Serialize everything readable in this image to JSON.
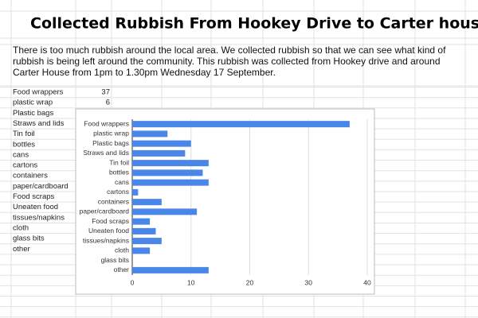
{
  "header": {
    "title": "Collected Rubbish From Hookey Drive to Carter house",
    "description": "There is too much rubbish around the local area. We collected rubbish so that we can see what kind of rubbish is being left around the community. This rubbish was collected from Hookey drive and around Carter House from 1pm to 1.30pm Wednesday 17 September."
  },
  "table": {
    "rows": [
      [
        "Food wrappers",
        37
      ],
      [
        "plastic wrap",
        6
      ],
      [
        "Plastic bags"
      ],
      [
        "Straws and lids"
      ],
      [
        "Tin foil"
      ],
      [
        "bottles"
      ],
      [
        "cans"
      ],
      [
        "cartons"
      ],
      [
        "containers"
      ],
      [
        "paper/cardboard"
      ],
      [
        "Food scraps"
      ],
      [
        "Uneaten food"
      ],
      [
        "tissues/napkins"
      ],
      [
        "cloth"
      ],
      [
        "glass bits"
      ],
      [
        "other"
      ]
    ]
  },
  "chart_data": {
    "type": "hbar",
    "categories": [
      "Food wrappers",
      "plastic wrap",
      "Plastic bags",
      "Straws and lids",
      "Tin foil",
      "bottles",
      "cans",
      "cartons",
      "containers",
      "paper/cardboard",
      "Food scraps",
      "Uneaten food",
      "tissues/napkins",
      "cloth",
      "glass bits",
      "other"
    ],
    "values": [
      37,
      6,
      10,
      9,
      13,
      12,
      13,
      1,
      5,
      11,
      3,
      4,
      5,
      3,
      0,
      13
    ],
    "color": "#4a86e8",
    "xlim": [
      0,
      40
    ],
    "xticks": [
      0,
      10,
      20,
      30,
      40
    ],
    "grid": true
  }
}
